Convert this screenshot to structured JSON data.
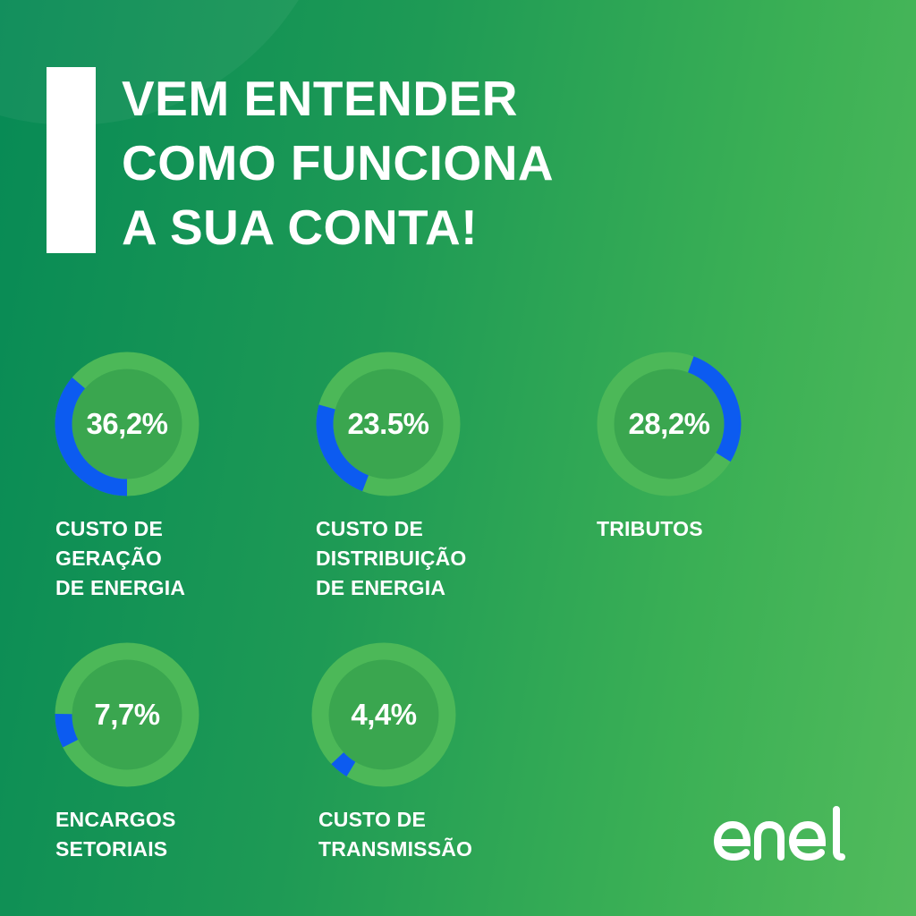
{
  "title_lines": [
    "VEM ENTENDER",
    "COMO FUNCIONA",
    "A SUA CONTA!"
  ],
  "colors": {
    "ring": "#4cb858",
    "segment": "#0c5bf0",
    "inner": "#3aa64f",
    "text": "#ffffff"
  },
  "chart_data": {
    "type": "pie",
    "items": [
      {
        "label": "36,2%",
        "value": 36.2,
        "caption": [
          "CUSTO DE",
          "GERAÇÃO",
          "DE ENERGIA"
        ]
      },
      {
        "label": "23.5%",
        "value": 23.5,
        "caption": [
          "CUSTO DE",
          "DISTRIBUIÇÃO",
          "DE ENERGIA"
        ]
      },
      {
        "label": "28,2%",
        "value": 28.2,
        "caption": [
          "TRIBUTOS"
        ]
      },
      {
        "label": "7,7%",
        "value": 7.7,
        "caption": [
          "ENCARGOS",
          "SETORIAIS"
        ]
      },
      {
        "label": "4,4%",
        "value": 4.4,
        "caption": [
          "CUSTO DE",
          "TRANSMISSÃO"
        ]
      }
    ]
  }
}
